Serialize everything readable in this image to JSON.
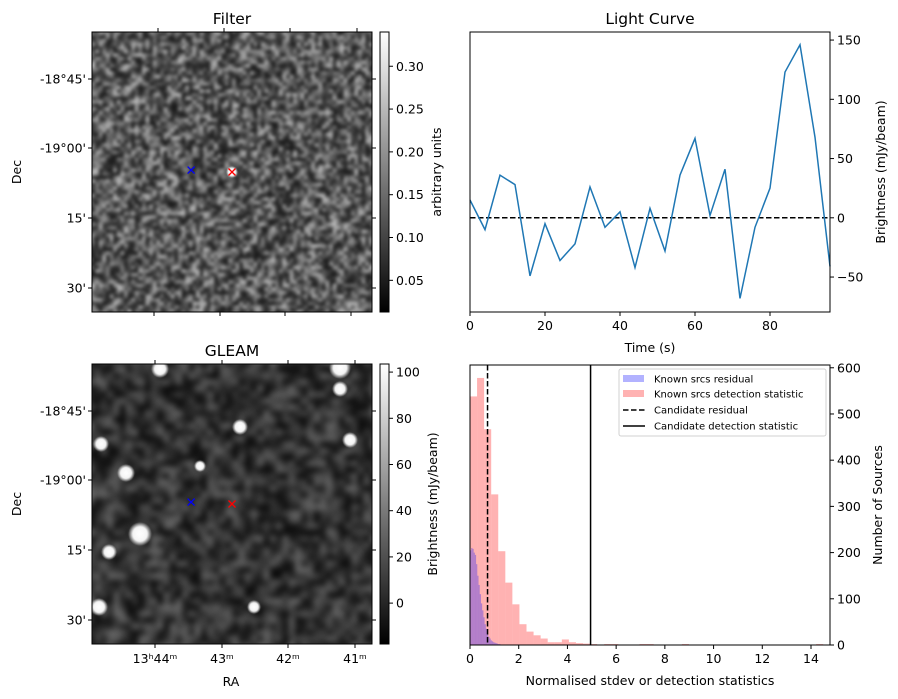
{
  "chart_data": [
    {
      "type": "heatmap",
      "title": "Filter",
      "xlabel": "",
      "ylabel": "Dec",
      "y_tick_labels": [
        "-18°45'",
        "-19°00'",
        "15'",
        "30'"
      ],
      "colormap": "gray",
      "colorbar": {
        "label": "arbitrary units",
        "ticks": [
          0.05,
          0.1,
          0.15,
          0.2,
          0.25,
          0.3
        ],
        "tick_labels": [
          "0.05",
          "0.10",
          "0.15",
          "0.20",
          "0.25",
          "0.30"
        ],
        "range": [
          0.013,
          0.34
        ]
      },
      "markers": [
        {
          "symbol": "x",
          "color": "#0000ff"
        },
        {
          "symbol": "x",
          "color": "#ff0000"
        }
      ]
    },
    {
      "type": "line",
      "title": "Light Curve",
      "xlabel": "Time (s)",
      "ylabel": "Brightness (mJy/beam)",
      "x": [
        0,
        4,
        8,
        12,
        16,
        20,
        24,
        28,
        32,
        36,
        40,
        44,
        48,
        52,
        56,
        60,
        64,
        68,
        72,
        76,
        80,
        84,
        88,
        92,
        96
      ],
      "y": [
        15,
        -10,
        36,
        28,
        -49,
        -5,
        -36,
        -22,
        26,
        -8,
        5,
        -42,
        8,
        -28,
        36,
        67,
        2,
        41,
        -68,
        -8,
        25,
        123,
        146,
        68,
        -41
      ],
      "xlim": [
        0,
        96
      ],
      "ylim": [
        -79.5,
        156.8
      ],
      "xticks": [
        0,
        20,
        40,
        60,
        80
      ],
      "xtick_labels": [
        "0",
        "20",
        "40",
        "60",
        "80"
      ],
      "yticks": [
        -50,
        0,
        50,
        100,
        150
      ],
      "ytick_labels": [
        "−50",
        "0",
        "50",
        "100",
        "150"
      ],
      "hline": 0,
      "line_color": "#1f77b4"
    },
    {
      "type": "heatmap",
      "title": "GLEAM",
      "xlabel": "RA",
      "ylabel": "Dec",
      "x_tick_labels": [
        "13ʰ44ᵐ",
        "43ᵐ",
        "42ᵐ",
        "41ᵐ"
      ],
      "y_tick_labels": [
        "-18°45'",
        "-19°00'",
        "15'",
        "30'"
      ],
      "colormap": "gray",
      "colorbar": {
        "label": "Brightness (mJy/beam)",
        "ticks": [
          0,
          20,
          40,
          60,
          80,
          100
        ],
        "tick_labels": [
          "0",
          "20",
          "40",
          "60",
          "80",
          "100"
        ],
        "range": [
          -17.7,
          103.5
        ]
      },
      "markers": [
        {
          "symbol": "x",
          "color": "#0000ff"
        },
        {
          "symbol": "x",
          "color": "#ff0000"
        }
      ]
    },
    {
      "type": "bar",
      "subtype": "histogram",
      "title": "",
      "xlabel": "Normalised stdev or detection statistics",
      "ylabel": "Number of Sources",
      "xlim": [
        0,
        14.78
      ],
      "ylim": [
        0,
        606
      ],
      "xticks": [
        0,
        2,
        4,
        6,
        8,
        10,
        12,
        14
      ],
      "xtick_labels": [
        "0",
        "2",
        "4",
        "6",
        "8",
        "10",
        "12",
        "14"
      ],
      "yticks": [
        0,
        100,
        200,
        300,
        400,
        500,
        600
      ],
      "ytick_labels": [
        "0",
        "100",
        "200",
        "300",
        "400",
        "500",
        "600"
      ],
      "series": [
        {
          "name": "Known srcs residual",
          "color": "#0000ff",
          "alpha": 0.3,
          "bin_start": 0,
          "bin_width": 0.05,
          "counts": [
            205,
            210,
            208,
            200,
            195,
            175,
            150,
            130,
            110,
            90,
            75,
            60,
            45,
            35,
            25,
            18,
            14,
            10,
            8,
            6,
            5,
            4,
            3,
            2,
            2,
            1,
            1,
            1,
            1,
            0,
            1
          ]
        },
        {
          "name": "Known srcs detection statistic",
          "color": "#ff0000",
          "alpha": 0.3,
          "bin_start": 0,
          "bin_width": 0.29,
          "counts": [
            538,
            578,
            467,
            326,
            203,
            135,
            88,
            45,
            29,
            21,
            14,
            6,
            6,
            12,
            6,
            4,
            3,
            2,
            0,
            2,
            2,
            0,
            0,
            0,
            2,
            2,
            0,
            0,
            0,
            0,
            2,
            0,
            0,
            0,
            0,
            0,
            0,
            0,
            0,
            0,
            0,
            0,
            0,
            0,
            0,
            0,
            0,
            0,
            0,
            2
          ]
        }
      ],
      "vlines": [
        {
          "name": "Candidate residual",
          "x": 0.72,
          "style": "dashed",
          "color": "#000000"
        },
        {
          "name": "Candidate detection statistic",
          "x": 4.95,
          "style": "solid",
          "color": "#000000"
        }
      ],
      "legend": {
        "placement": "top-right",
        "entries": [
          "Known srcs residual",
          "Known srcs detection statistic",
          "Candidate residual",
          "Candidate detection statistic"
        ]
      }
    }
  ]
}
